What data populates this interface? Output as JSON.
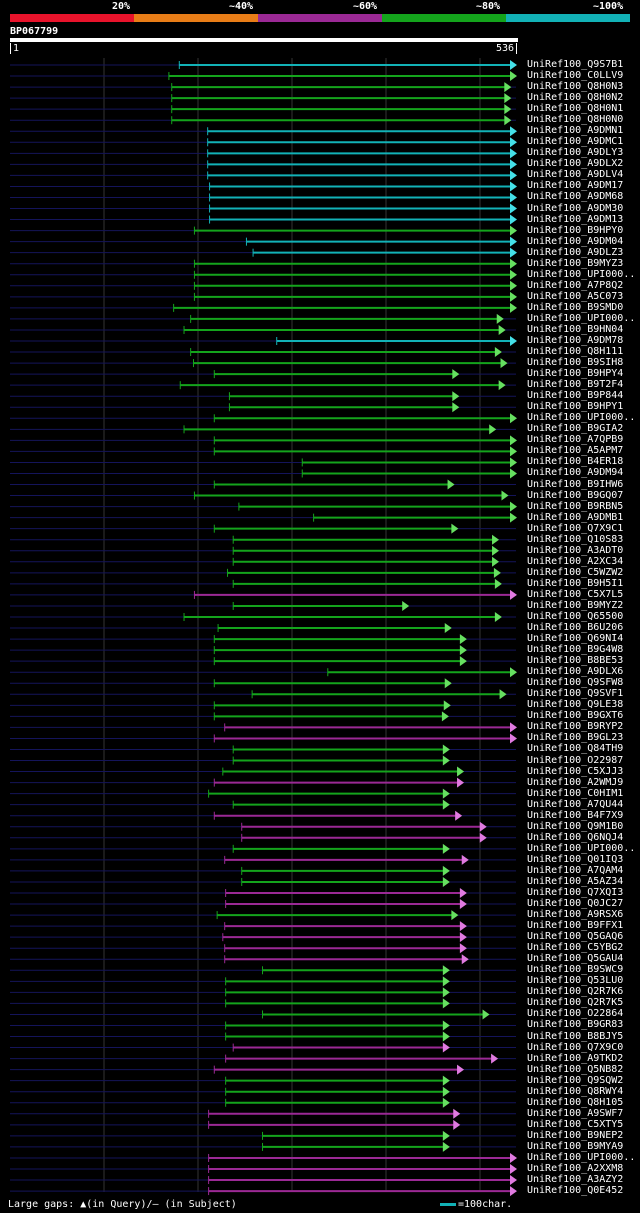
{
  "legend": {
    "labels": [
      "20%",
      "~40%",
      "~60%",
      "~80%",
      "~100%"
    ],
    "colors": [
      "#e8132b",
      "#e97d17",
      "#9b2995",
      "#14a41c",
      "#12b1b6"
    ]
  },
  "query": {
    "id": "BP067799",
    "start": "1",
    "end": "536",
    "length": 536
  },
  "footer": {
    "text": "Large gaps: ▲(in Query)/– (in Subject)",
    "scale_text": "=100char.",
    "scale_color": "#12b1b6"
  },
  "chart_data": {
    "type": "alignment",
    "title": "BP067799",
    "x_range": [
      1,
      536
    ],
    "hits": [
      {
        "name": "UniRef100_Q9S7B1",
        "start": 180,
        "end": 552,
        "color": "cyan"
      },
      {
        "name": "UniRef100_C0LLV9",
        "start": 169,
        "end": 537,
        "color": "green"
      },
      {
        "name": "UniRef100_Q8H0N3",
        "start": 172,
        "end": 530,
        "color": "green"
      },
      {
        "name": "UniRef100_Q8H0N2",
        "start": 172,
        "end": 530,
        "color": "green"
      },
      {
        "name": "UniRef100_Q8H0N1",
        "start": 172,
        "end": 530,
        "color": "green"
      },
      {
        "name": "UniRef100_Q8H0N0",
        "start": 172,
        "end": 530,
        "color": "green"
      },
      {
        "name": "UniRef100_A9DMN1",
        "start": 210,
        "end": 540,
        "color": "cyan"
      },
      {
        "name": "UniRef100_A9DMC1",
        "start": 210,
        "end": 540,
        "color": "cyan"
      },
      {
        "name": "UniRef100_A9DLY3",
        "start": 210,
        "end": 540,
        "color": "cyan"
      },
      {
        "name": "UniRef100_A9DLX2",
        "start": 210,
        "end": 540,
        "color": "cyan"
      },
      {
        "name": "UniRef100_A9DLV4",
        "start": 210,
        "end": 540,
        "color": "cyan"
      },
      {
        "name": "UniRef100_A9DM17",
        "start": 212,
        "end": 540,
        "color": "cyan"
      },
      {
        "name": "UniRef100_A9DM68",
        "start": 212,
        "end": 540,
        "color": "cyan"
      },
      {
        "name": "UniRef100_A9DM30",
        "start": 212,
        "end": 540,
        "color": "cyan"
      },
      {
        "name": "UniRef100_A9DM13",
        "start": 212,
        "end": 540,
        "color": "cyan"
      },
      {
        "name": "UniRef100_B9HPY0",
        "start": 196,
        "end": 538,
        "color": "green"
      },
      {
        "name": "UniRef100_A9DM04",
        "start": 251,
        "end": 540,
        "color": "cyan"
      },
      {
        "name": "UniRef100_A9DLZ3",
        "start": 258,
        "end": 540,
        "color": "cyan"
      },
      {
        "name": "UniRef100_B9MYZ3",
        "start": 196,
        "end": 540,
        "color": "green"
      },
      {
        "name": "UniRef100_UPI000..",
        "start": 196,
        "end": 540,
        "color": "green"
      },
      {
        "name": "UniRef100_A7P8Q2",
        "start": 196,
        "end": 540,
        "color": "green"
      },
      {
        "name": "UniRef100_A5C073",
        "start": 196,
        "end": 540,
        "color": "green"
      },
      {
        "name": "UniRef100_B9SMD0",
        "start": 174,
        "end": 538,
        "color": "green"
      },
      {
        "name": "UniRef100_UPI000..",
        "start": 192,
        "end": 522,
        "color": "green"
      },
      {
        "name": "UniRef100_B9HN04",
        "start": 185,
        "end": 524,
        "color": "green"
      },
      {
        "name": "UniRef100_A9DM78",
        "start": 283,
        "end": 540,
        "color": "cyan"
      },
      {
        "name": "UniRef100_Q8H111",
        "start": 192,
        "end": 520,
        "color": "green"
      },
      {
        "name": "UniRef100_B9SIH8",
        "start": 195,
        "end": 526,
        "color": "green"
      },
      {
        "name": "UniRef100_B9HPY4",
        "start": 217,
        "end": 475,
        "color": "green"
      },
      {
        "name": "UniRef100_B9T2F4",
        "start": 181,
        "end": 524,
        "color": "green"
      },
      {
        "name": "UniRef100_B9P844",
        "start": 233,
        "end": 475,
        "color": "green"
      },
      {
        "name": "UniRef100_B9HPY1",
        "start": 233,
        "end": 475,
        "color": "green"
      },
      {
        "name": "UniRef100_UPI000..",
        "start": 217,
        "end": 540,
        "color": "green"
      },
      {
        "name": "UniRef100_B9GIA2",
        "start": 185,
        "end": 514,
        "color": "green"
      },
      {
        "name": "UniRef100_A7QPB9",
        "start": 217,
        "end": 540,
        "color": "green"
      },
      {
        "name": "UniRef100_A5APM7",
        "start": 217,
        "end": 540,
        "color": "green"
      },
      {
        "name": "UniRef100_B4ER18",
        "start": 310,
        "end": 540,
        "color": "green"
      },
      {
        "name": "UniRef100_A9DM94",
        "start": 310,
        "end": 540,
        "color": "green"
      },
      {
        "name": "UniRef100_B9IHW6",
        "start": 217,
        "end": 470,
        "color": "green"
      },
      {
        "name": "UniRef100_B9GQ07",
        "start": 196,
        "end": 527,
        "color": "green"
      },
      {
        "name": "UniRef100_B9RBN5",
        "start": 243,
        "end": 543,
        "color": "green"
      },
      {
        "name": "UniRef100_A9DMB1",
        "start": 322,
        "end": 540,
        "color": "green"
      },
      {
        "name": "UniRef100_Q7X9C1",
        "start": 217,
        "end": 474,
        "color": "green"
      },
      {
        "name": "UniRef100_Q10S83",
        "start": 237,
        "end": 517,
        "color": "green"
      },
      {
        "name": "UniRef100_A3ADT0",
        "start": 237,
        "end": 517,
        "color": "green"
      },
      {
        "name": "UniRef100_A2XC34",
        "start": 237,
        "end": 517,
        "color": "green"
      },
      {
        "name": "UniRef100_C5WZW2",
        "start": 231,
        "end": 519,
        "color": "green"
      },
      {
        "name": "UniRef100_B9H5I1",
        "start": 237,
        "end": 520,
        "color": "green"
      },
      {
        "name": "UniRef100_C5X7L5",
        "start": 196,
        "end": 548,
        "color": "magenta"
      },
      {
        "name": "UniRef100_B9MYZ2",
        "start": 237,
        "end": 422,
        "color": "green"
      },
      {
        "name": "UniRef100_Q65500",
        "start": 185,
        "end": 520,
        "color": "green"
      },
      {
        "name": "UniRef100_B6U206",
        "start": 221,
        "end": 467,
        "color": "green"
      },
      {
        "name": "UniRef100_Q69NI4",
        "start": 217,
        "end": 483,
        "color": "green"
      },
      {
        "name": "UniRef100_B9G4W8",
        "start": 217,
        "end": 483,
        "color": "green"
      },
      {
        "name": "UniRef100_B8BE53",
        "start": 217,
        "end": 483,
        "color": "green"
      },
      {
        "name": "UniRef100_A9DLX6",
        "start": 337,
        "end": 540,
        "color": "green"
      },
      {
        "name": "UniRef100_Q9SFW8",
        "start": 217,
        "end": 467,
        "color": "green"
      },
      {
        "name": "UniRef100_Q9SVF1",
        "start": 257,
        "end": 525,
        "color": "green"
      },
      {
        "name": "UniRef100_Q9LE38",
        "start": 217,
        "end": 466,
        "color": "green"
      },
      {
        "name": "UniRef100_B9GXT6",
        "start": 217,
        "end": 464,
        "color": "green"
      },
      {
        "name": "UniRef100_B9RYP2",
        "start": 228,
        "end": 540,
        "color": "magenta"
      },
      {
        "name": "UniRef100_B9GL23",
        "start": 217,
        "end": 540,
        "color": "magenta"
      },
      {
        "name": "UniRef100_Q84TH9",
        "start": 237,
        "end": 465,
        "color": "green"
      },
      {
        "name": "UniRef100_O22987",
        "start": 237,
        "end": 465,
        "color": "green"
      },
      {
        "name": "UniRef100_C5XJJ3",
        "start": 226,
        "end": 480,
        "color": "green"
      },
      {
        "name": "UniRef100_A2WMJ9",
        "start": 217,
        "end": 480,
        "color": "magenta"
      },
      {
        "name": "UniRef100_C0HIM1",
        "start": 211,
        "end": 465,
        "color": "green"
      },
      {
        "name": "UniRef100_A7QU44",
        "start": 237,
        "end": 465,
        "color": "green"
      },
      {
        "name": "UniRef100_B4F7X9",
        "start": 217,
        "end": 478,
        "color": "magenta"
      },
      {
        "name": "UniRef100_Q9M1B0",
        "start": 246,
        "end": 504,
        "color": "magenta"
      },
      {
        "name": "UniRef100_Q6NQJ4",
        "start": 246,
        "end": 504,
        "color": "magenta"
      },
      {
        "name": "UniRef100_UPI000..",
        "start": 237,
        "end": 465,
        "color": "green"
      },
      {
        "name": "UniRef100_Q01IQ3",
        "start": 228,
        "end": 485,
        "color": "magenta"
      },
      {
        "name": "UniRef100_A7QAM4",
        "start": 246,
        "end": 465,
        "color": "green"
      },
      {
        "name": "UniRef100_A5AZ34",
        "start": 246,
        "end": 465,
        "color": "green"
      },
      {
        "name": "UniRef100_Q7XQI3",
        "start": 229,
        "end": 483,
        "color": "magenta"
      },
      {
        "name": "UniRef100_Q0JC27",
        "start": 229,
        "end": 483,
        "color": "magenta"
      },
      {
        "name": "UniRef100_A9RSX6",
        "start": 220,
        "end": 474,
        "color": "green"
      },
      {
        "name": "UniRef100_B9FFX1",
        "start": 228,
        "end": 483,
        "color": "magenta"
      },
      {
        "name": "UniRef100_Q5GAQ6",
        "start": 226,
        "end": 483,
        "color": "magenta"
      },
      {
        "name": "UniRef100_C5YBG2",
        "start": 228,
        "end": 483,
        "color": "magenta"
      },
      {
        "name": "UniRef100_Q5GAU4",
        "start": 228,
        "end": 485,
        "color": "magenta"
      },
      {
        "name": "UniRef100_B9SWC9",
        "start": 268,
        "end": 465,
        "color": "green"
      },
      {
        "name": "UniRef100_Q53LU0",
        "start": 229,
        "end": 465,
        "color": "green"
      },
      {
        "name": "UniRef100_Q2R7K6",
        "start": 229,
        "end": 465,
        "color": "green"
      },
      {
        "name": "UniRef100_Q2R7K5",
        "start": 229,
        "end": 465,
        "color": "green"
      },
      {
        "name": "UniRef100_O22864",
        "start": 268,
        "end": 507,
        "color": "green"
      },
      {
        "name": "UniRef100_B9GR83",
        "start": 229,
        "end": 465,
        "color": "green"
      },
      {
        "name": "UniRef100_B8BJY5",
        "start": 229,
        "end": 465,
        "color": "green"
      },
      {
        "name": "UniRef100_Q7X9C0",
        "start": 237,
        "end": 465,
        "color": "magenta"
      },
      {
        "name": "UniRef100_A9TKD2",
        "start": 229,
        "end": 516,
        "color": "magenta"
      },
      {
        "name": "UniRef100_Q5NB82",
        "start": 217,
        "end": 480,
        "color": "magenta"
      },
      {
        "name": "UniRef100_Q9SQW2",
        "start": 229,
        "end": 465,
        "color": "green"
      },
      {
        "name": "UniRef100_Q8RWY4",
        "start": 229,
        "end": 465,
        "color": "green"
      },
      {
        "name": "UniRef100_Q8H105",
        "start": 229,
        "end": 465,
        "color": "green"
      },
      {
        "name": "UniRef100_A9SWF7",
        "start": 211,
        "end": 476,
        "color": "magenta"
      },
      {
        "name": "UniRef100_C5XTY5",
        "start": 211,
        "end": 476,
        "color": "magenta"
      },
      {
        "name": "UniRef100_B9NEP2",
        "start": 268,
        "end": 465,
        "color": "green"
      },
      {
        "name": "UniRef100_B9MYA9",
        "start": 268,
        "end": 465,
        "color": "green"
      },
      {
        "name": "UniRef100_UPI000..",
        "start": 211,
        "end": 540,
        "color": "magenta"
      },
      {
        "name": "UniRef100_A2XXM8",
        "start": 211,
        "end": 540,
        "color": "magenta"
      },
      {
        "name": "UniRef100_A3AZY2",
        "start": 211,
        "end": 540,
        "color": "magenta"
      },
      {
        "name": "UniRef100_Q0E452",
        "start": 211,
        "end": 540,
        "color": "magenta"
      }
    ]
  }
}
